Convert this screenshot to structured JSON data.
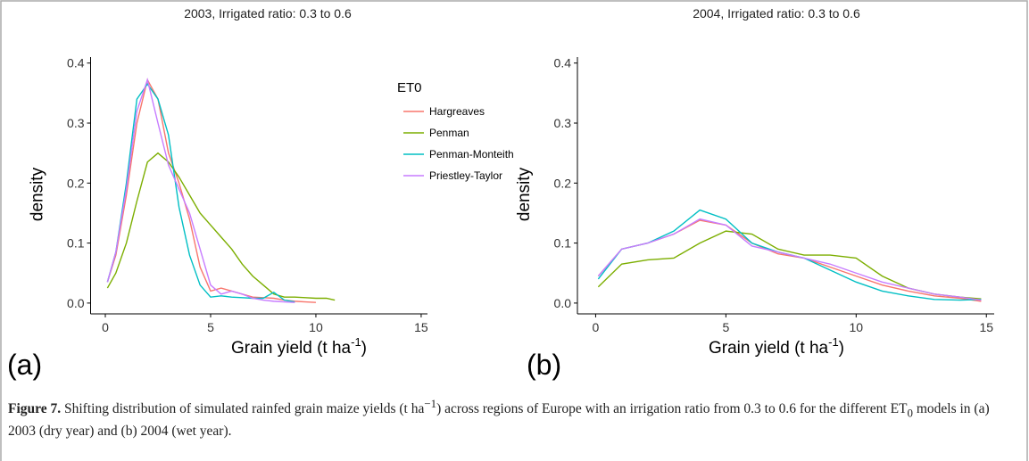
{
  "chart_data": [
    {
      "type": "line",
      "title": "2003, Irrigated ratio: 0.3 to 0.6",
      "panel_label": "(a)",
      "y_label": "density",
      "x_label": [
        "Grain yield (t ha",
        "-1",
        ")"
      ],
      "legend_title": "ET0",
      "x": [
        0.1,
        0.5,
        1,
        1.5,
        2,
        2.5,
        3,
        3.5,
        4,
        4.5,
        5,
        5.5,
        6,
        6.5,
        7,
        7.5,
        8,
        8.5,
        9,
        9.5,
        10,
        10.5,
        10.9
      ],
      "series": [
        {
          "name": "Hargreaves",
          "color": "#F8766D",
          "values": [
            0.035,
            0.08,
            0.18,
            0.3,
            0.372,
            0.34,
            0.25,
            0.2,
            0.14,
            0.06,
            0.02,
            0.025,
            0.02,
            0.015,
            0.01,
            0.009,
            0.008,
            0.005,
            0.003,
            0.002,
            0.001,
            null,
            null
          ]
        },
        {
          "name": "Penman",
          "color": "#7CAE00",
          "values": [
            0.025,
            0.05,
            0.1,
            0.17,
            0.235,
            0.25,
            0.235,
            0.21,
            0.18,
            0.15,
            0.13,
            0.11,
            0.09,
            0.065,
            0.045,
            0.03,
            0.015,
            0.01,
            0.01,
            0.009,
            0.008,
            0.008,
            0.005
          ]
        },
        {
          "name": "Penman-Monteith",
          "color": "#00BFC4",
          "values": [
            0.035,
            0.085,
            0.2,
            0.34,
            0.365,
            0.34,
            0.28,
            0.16,
            0.08,
            0.03,
            0.01,
            0.012,
            0.01,
            0.009,
            0.008,
            0.008,
            0.018,
            0.005,
            0.002,
            null,
            null,
            null,
            null
          ]
        },
        {
          "name": "Priestley-Taylor",
          "color": "#C77CFF",
          "values": [
            0.035,
            0.085,
            0.19,
            0.32,
            0.372,
            0.3,
            0.23,
            0.19,
            0.15,
            0.09,
            0.03,
            0.015,
            0.02,
            0.015,
            0.008,
            0.005,
            0.003,
            0.002,
            0.001,
            null,
            null,
            null,
            null
          ]
        }
      ],
      "xlim": [
        -0.7,
        15.3
      ],
      "ylim": [
        -0.018,
        0.41
      ],
      "xticks": [
        0,
        5,
        10,
        15
      ],
      "yticks": [
        {
          "value": 0,
          "label": "0.0"
        },
        0.1,
        0.2,
        0.3,
        0.4
      ]
    },
    {
      "type": "line",
      "title": "2004, Irrigated ratio: 0.3 to 0.6",
      "panel_label": "(b)",
      "y_label": "density",
      "x_label": [
        "Grain yield (t ha",
        "-1",
        ")"
      ],
      "x": [
        0.1,
        1,
        2,
        3,
        4,
        5,
        6,
        7,
        8,
        9,
        10,
        11,
        12,
        13,
        14,
        14.8
      ],
      "series": [
        {
          "name": "Hargreaves",
          "color": "#F8766D",
          "values": [
            0.045,
            0.09,
            0.1,
            0.115,
            0.138,
            0.13,
            0.1,
            0.082,
            0.075,
            0.06,
            0.045,
            0.03,
            0.02,
            0.012,
            0.008,
            0.003
          ]
        },
        {
          "name": "Penman",
          "color": "#7CAE00",
          "values": [
            0.027,
            0.065,
            0.072,
            0.075,
            0.1,
            0.12,
            0.115,
            0.09,
            0.08,
            0.08,
            0.075,
            0.045,
            0.025,
            0.015,
            0.01,
            0.007
          ]
        },
        {
          "name": "Penman-Monteith",
          "color": "#00BFC4",
          "values": [
            0.04,
            0.09,
            0.1,
            0.12,
            0.155,
            0.14,
            0.1,
            0.085,
            0.075,
            0.055,
            0.035,
            0.02,
            0.012,
            0.006,
            0.005,
            0.006
          ]
        },
        {
          "name": "Priestley-Taylor",
          "color": "#C77CFF",
          "values": [
            0.045,
            0.09,
            0.1,
            0.115,
            0.14,
            0.13,
            0.095,
            0.085,
            0.075,
            0.065,
            0.05,
            0.035,
            0.025,
            0.015,
            0.01,
            0.005
          ]
        }
      ],
      "xlim": [
        -0.7,
        15.3
      ],
      "ylim": [
        -0.018,
        0.41
      ],
      "xticks": [
        0,
        5,
        10,
        15
      ],
      "yticks": [
        {
          "value": 0,
          "label": "0.0"
        },
        0.1,
        0.2,
        0.3,
        0.4
      ]
    }
  ],
  "caption": [
    "Figure 7.",
    " Shifting distribution of simulated rainfed grain maize yields (t ha",
    "−1",
    ") across regions of Europe with an irrigation ratio from 0.3 to 0.6 for the different ET",
    "0",
    " models in (a) 2003 (dry year) and (b) 2004 (wet year)."
  ]
}
